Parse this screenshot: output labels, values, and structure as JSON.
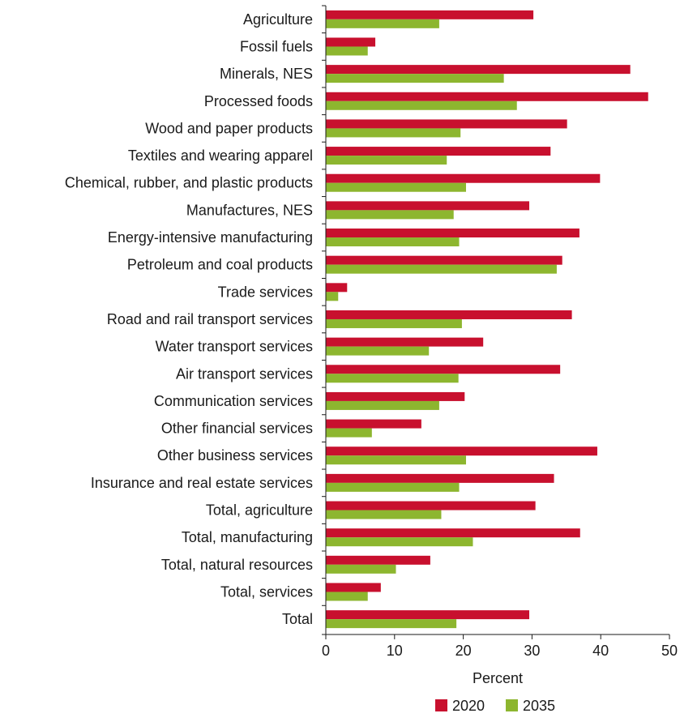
{
  "chart_data": {
    "type": "bar",
    "orientation": "horizontal",
    "categories": [
      "Agriculture",
      "Fossil fuels",
      "Minerals, NES",
      "Processed foods",
      "Wood and paper products",
      "Textiles and wearing apparel",
      "Chemical, rubber, and plastic products",
      "Manufactures, NES",
      "Energy-intensive manufacturing",
      "Petroleum and coal products",
      "Trade services",
      "Road and rail transport services",
      "Water transport services",
      "Air transport services",
      "Communication services",
      "Other financial services",
      "Other business services",
      "Insurance and real estate services",
      "Total, agriculture",
      "Total, manufacturing",
      "Total, natural resources",
      "Total, services",
      "Total"
    ],
    "series": [
      {
        "name": "2020",
        "color": "#c8102e",
        "values": [
          30.2,
          7.2,
          44.3,
          46.9,
          35.1,
          32.7,
          39.9,
          29.6,
          36.9,
          34.4,
          3.1,
          35.8,
          22.9,
          34.1,
          20.2,
          13.9,
          39.5,
          33.2,
          30.5,
          37.0,
          15.2,
          8.0,
          29.6
        ]
      },
      {
        "name": "2035",
        "color": "#8db62f",
        "values": [
          16.5,
          6.1,
          25.9,
          27.8,
          19.6,
          17.6,
          20.4,
          18.6,
          19.4,
          33.6,
          1.8,
          19.8,
          15.0,
          19.3,
          16.5,
          6.7,
          20.4,
          19.4,
          16.8,
          21.4,
          10.2,
          6.1,
          19.0
        ]
      }
    ],
    "xlabel": "Percent",
    "xlim": [
      0,
      50
    ],
    "xticks": [
      0,
      10,
      20,
      30,
      40,
      50
    ],
    "grid": false,
    "legend_position": "bottom-right"
  }
}
